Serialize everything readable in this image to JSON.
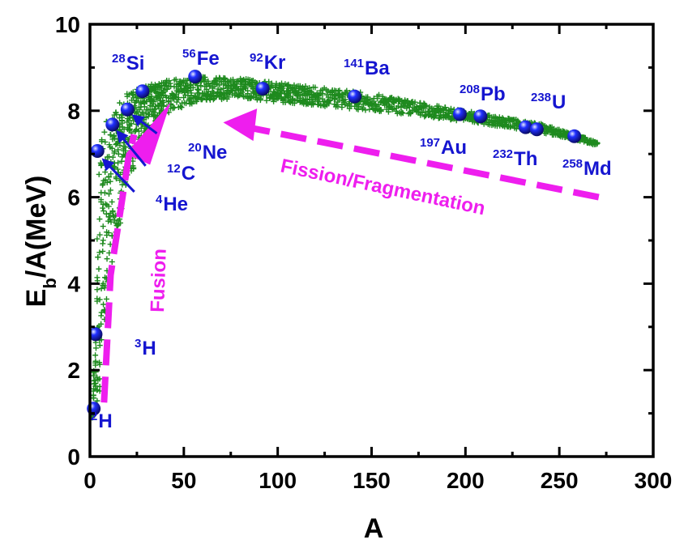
{
  "chart_data": {
    "type": "scatter",
    "xlabel": "A",
    "ylabel": {
      "main": "E",
      "sub": "b",
      "rest": "/A(MeV)"
    },
    "xlim": [
      0,
      300
    ],
    "ylim": [
      0,
      10
    ],
    "xticks": [
      "0",
      "50",
      "100",
      "150",
      "200",
      "250",
      "300"
    ],
    "yticks": [
      "0",
      "2",
      "4",
      "6",
      "8",
      "10"
    ],
    "grid": false,
    "colors": {
      "nuclide_points": "#2030ff",
      "all_nuclei": "#1e8a1e",
      "arrows": "#1515d0",
      "annotations": "#ee1eee",
      "labels": "#1515d0"
    },
    "highlighted_nuclides": [
      {
        "mass": "2",
        "symbol": "H",
        "x": 2,
        "y": 1.11
      },
      {
        "mass": "3",
        "symbol": "H",
        "x": 3,
        "y": 2.83
      },
      {
        "mass": "4",
        "symbol": "He",
        "x": 4,
        "y": 7.07
      },
      {
        "mass": "12",
        "symbol": "C",
        "x": 12,
        "y": 7.68
      },
      {
        "mass": "20",
        "symbol": "Ne",
        "x": 20,
        "y": 8.03
      },
      {
        "mass": "28",
        "symbol": "Si",
        "x": 28,
        "y": 8.45
      },
      {
        "mass": "56",
        "symbol": "Fe",
        "x": 56,
        "y": 8.79
      },
      {
        "mass": "92",
        "symbol": "Kr",
        "x": 92,
        "y": 8.51
      },
      {
        "mass": "141",
        "symbol": "Ba",
        "x": 141,
        "y": 8.33
      },
      {
        "mass": "197",
        "symbol": "Au",
        "x": 197,
        "y": 7.92
      },
      {
        "mass": "208",
        "symbol": "Pb",
        "x": 208,
        "y": 7.87
      },
      {
        "mass": "232",
        "symbol": "Th",
        "x": 232,
        "y": 7.62
      },
      {
        "mass": "238",
        "symbol": "U",
        "x": 238,
        "y": 7.57
      },
      {
        "mass": "258",
        "symbol": "Md",
        "x": 258,
        "y": 7.41
      }
    ],
    "all_nuclei_band": {
      "marker": "+",
      "A_range": [
        1,
        270
      ],
      "upper": [
        [
          1,
          1.2
        ],
        [
          3,
          2.9
        ],
        [
          5,
          7.2
        ],
        [
          8,
          7.7
        ],
        [
          12,
          8.0
        ],
        [
          20,
          8.4
        ],
        [
          30,
          8.6
        ],
        [
          40,
          8.7
        ],
        [
          56,
          8.8
        ],
        [
          80,
          8.75
        ],
        [
          100,
          8.65
        ],
        [
          150,
          8.4
        ],
        [
          200,
          8.0
        ],
        [
          240,
          7.7
        ],
        [
          270,
          7.3
        ]
      ],
      "lower": [
        [
          1,
          0.9
        ],
        [
          3,
          1.0
        ],
        [
          5,
          1.5
        ],
        [
          8,
          3.0
        ],
        [
          12,
          4.5
        ],
        [
          20,
          6.3
        ],
        [
          30,
          7.4
        ],
        [
          40,
          7.9
        ],
        [
          56,
          8.2
        ],
        [
          80,
          8.3
        ],
        [
          100,
          8.2
        ],
        [
          150,
          8.0
        ],
        [
          200,
          7.75
        ],
        [
          240,
          7.5
        ],
        [
          270,
          7.2
        ]
      ]
    },
    "annotations": [
      {
        "text": "Fusion"
      },
      {
        "text": "Fission/Fragmentation"
      }
    ]
  }
}
